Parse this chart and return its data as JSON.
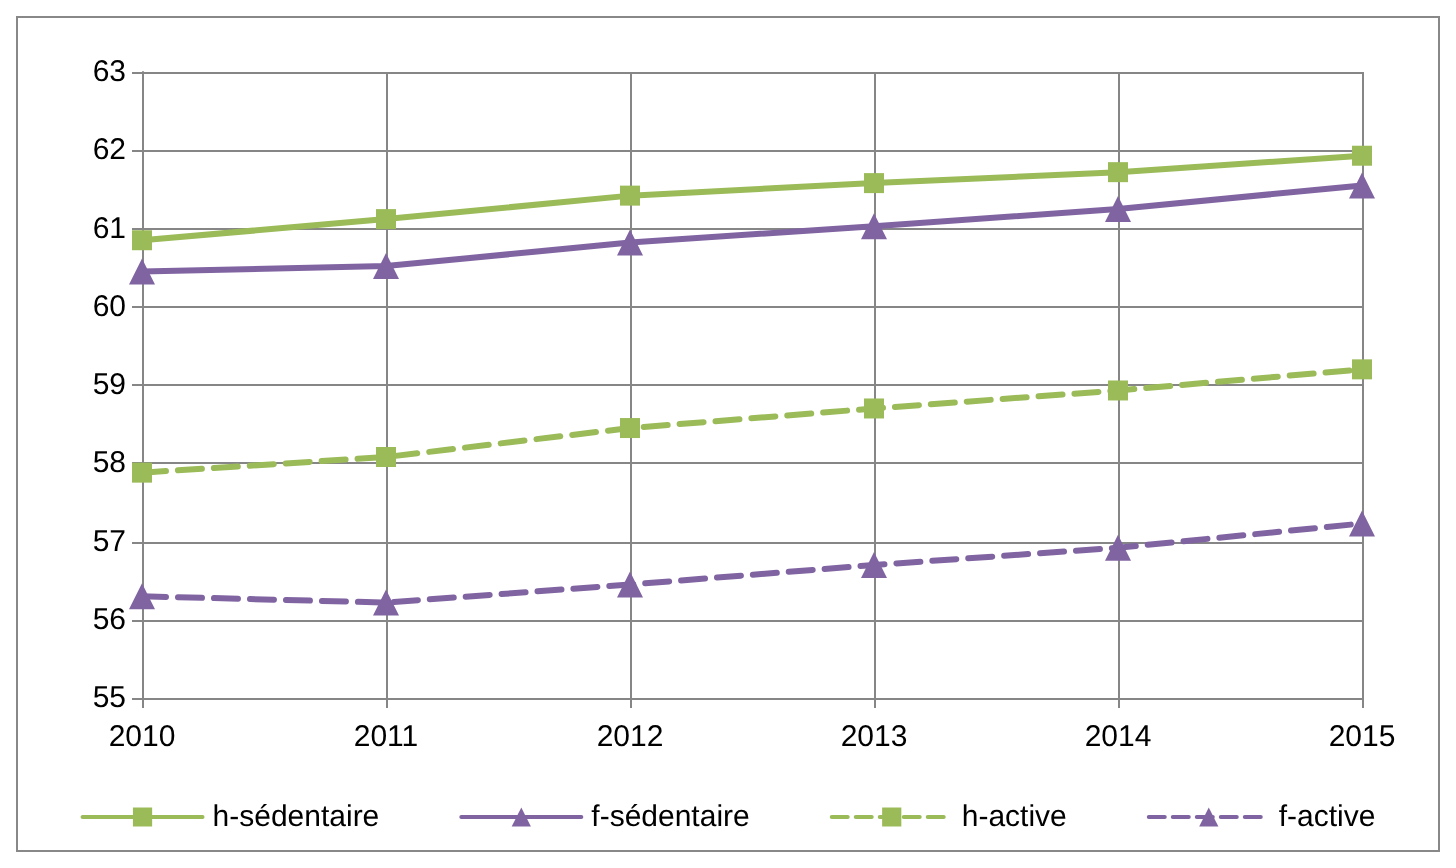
{
  "chart_data": {
    "type": "line",
    "categories": [
      "2010",
      "2011",
      "2012",
      "2013",
      "2014",
      "2015"
    ],
    "series": [
      {
        "name": "h-sédentaire",
        "color": "#9bbb59",
        "marker": "square",
        "line_style": "solid",
        "values": [
          60.85,
          61.12,
          61.42,
          61.58,
          61.72,
          61.93
        ]
      },
      {
        "name": "f-sédentaire",
        "color": "#8064a2",
        "marker": "triangle",
        "line_style": "solid",
        "values": [
          60.45,
          60.52,
          60.82,
          61.03,
          61.25,
          61.55
        ]
      },
      {
        "name": "h-active",
        "color": "#9bbb59",
        "marker": "square",
        "line_style": "dashed",
        "values": [
          57.88,
          58.08,
          58.45,
          58.7,
          58.93,
          59.2
        ]
      },
      {
        "name": "f-active",
        "color": "#8064a2",
        "marker": "triangle",
        "line_style": "dashed",
        "values": [
          56.3,
          56.22,
          56.45,
          56.7,
          56.92,
          57.23
        ]
      }
    ],
    "ylim": [
      55,
      63
    ],
    "yticks": [
      55,
      56,
      57,
      58,
      59,
      60,
      61,
      62,
      63
    ],
    "grid": true,
    "legend": "bottom"
  }
}
